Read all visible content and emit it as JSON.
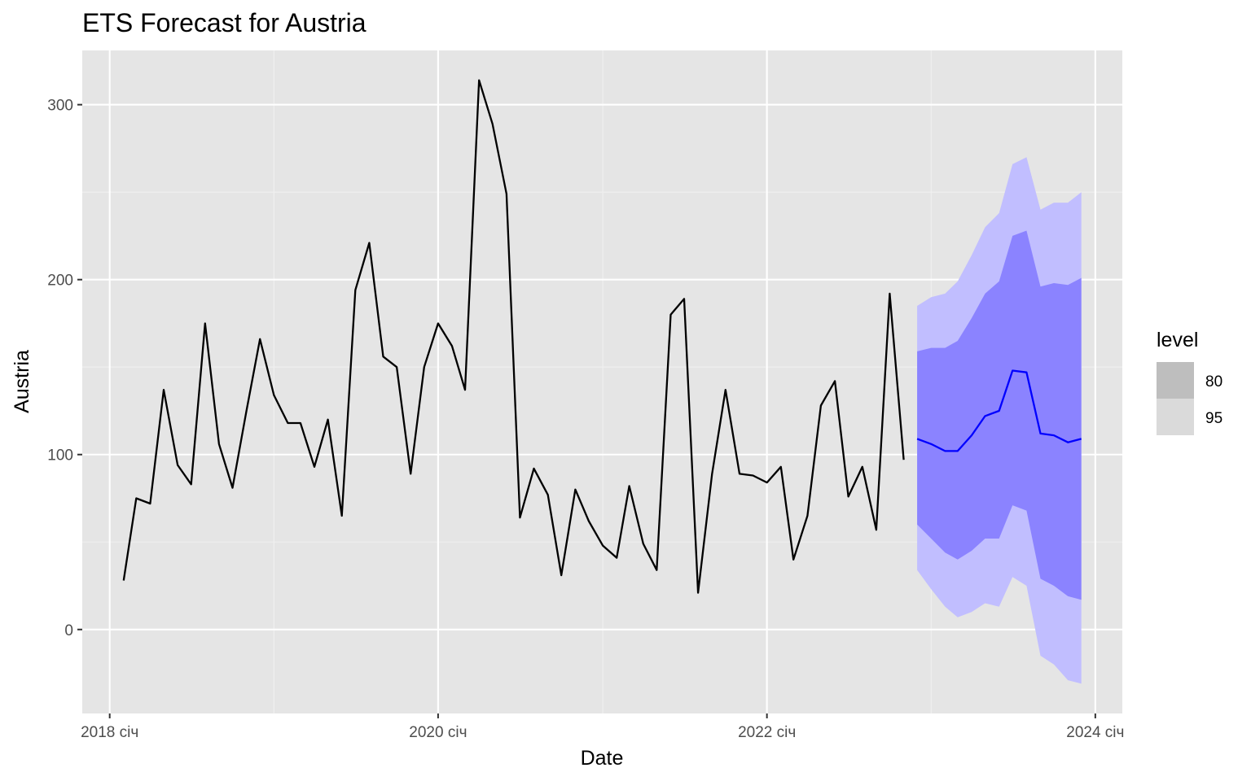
{
  "chart_data": {
    "type": "line",
    "title": "ETS Forecast for Austria",
    "xlabel": "Date",
    "ylabel": "Austria",
    "x_ticks": [
      "2018 січ",
      "2020 січ",
      "2022 січ",
      "2024 січ"
    ],
    "y_ticks": [
      "0",
      "100",
      "200",
      "300"
    ],
    "y_tick_values": [
      0,
      100,
      200,
      300
    ],
    "ylim": [
      -48,
      331
    ],
    "xlim": [
      "2017-11",
      "2024-03"
    ],
    "grid": true,
    "legend": {
      "title": "level",
      "position": "right",
      "entries": [
        {
          "label": "80",
          "color": "#bebebe"
        },
        {
          "label": "95",
          "color": "#dadada"
        }
      ]
    },
    "colors": {
      "panel": "#e5e5e5",
      "grid_major": "#ffffff",
      "grid_minor": "#f0f0f0",
      "history_line": "#000000",
      "forecast_line": "#0000ff",
      "band_80": "#8b83ff",
      "band_95": "#c1beff"
    },
    "series": [
      {
        "name": "history",
        "x": [
          "2018-02",
          "2018-03",
          "2018-04",
          "2018-05",
          "2018-06",
          "2018-07",
          "2018-08",
          "2018-09",
          "2018-10",
          "2018-11",
          "2018-12",
          "2019-01",
          "2019-02",
          "2019-03",
          "2019-04",
          "2019-05",
          "2019-06",
          "2019-07",
          "2019-08",
          "2019-09",
          "2019-10",
          "2019-11",
          "2019-12",
          "2020-01",
          "2020-02",
          "2020-03",
          "2020-04",
          "2020-05",
          "2020-06",
          "2020-07",
          "2020-08",
          "2020-09",
          "2020-10",
          "2020-11",
          "2020-12",
          "2021-01",
          "2021-02",
          "2021-03",
          "2021-04",
          "2021-05",
          "2021-06",
          "2021-07",
          "2021-08",
          "2021-09",
          "2021-10",
          "2021-11",
          "2021-12",
          "2022-01",
          "2022-02",
          "2022-03",
          "2022-04",
          "2022-05",
          "2022-06",
          "2022-07",
          "2022-08",
          "2022-09",
          "2022-10",
          "2022-11"
        ],
        "values": [
          28,
          75,
          72,
          137,
          94,
          83,
          175,
          106,
          81,
          125,
          166,
          134,
          118,
          118,
          93,
          120,
          65,
          194,
          221,
          156,
          150,
          89,
          150,
          175,
          162,
          137,
          314,
          289,
          249,
          64,
          92,
          77,
          31,
          80,
          62,
          48,
          41,
          82,
          49,
          34,
          180,
          189,
          21,
          89,
          137,
          89,
          88,
          84,
          93,
          40,
          65,
          128,
          142,
          76,
          93,
          57,
          192,
          97
        ]
      },
      {
        "name": "forecast",
        "x": [
          "2022-12",
          "2023-01",
          "2023-02",
          "2023-03",
          "2023-04",
          "2023-05",
          "2023-06",
          "2023-07",
          "2023-08",
          "2023-09",
          "2023-10",
          "2023-11",
          "2023-12"
        ],
        "values": [
          109,
          106,
          102,
          102,
          111,
          122,
          125,
          148,
          147,
          112,
          111,
          107,
          109
        ],
        "lower_80": [
          60,
          52,
          44,
          40,
          45,
          52,
          52,
          71,
          68,
          29,
          25,
          19,
          17
        ],
        "upper_80": [
          159,
          161,
          161,
          165,
          178,
          192,
          199,
          225,
          228,
          196,
          198,
          197,
          201
        ],
        "lower_95": [
          34,
          23,
          13,
          7,
          10,
          15,
          13,
          30,
          25,
          -15,
          -20,
          -29,
          -31
        ],
        "upper_95": [
          185,
          190,
          192,
          199,
          214,
          230,
          238,
          266,
          270,
          240,
          244,
          244,
          250
        ]
      }
    ]
  }
}
